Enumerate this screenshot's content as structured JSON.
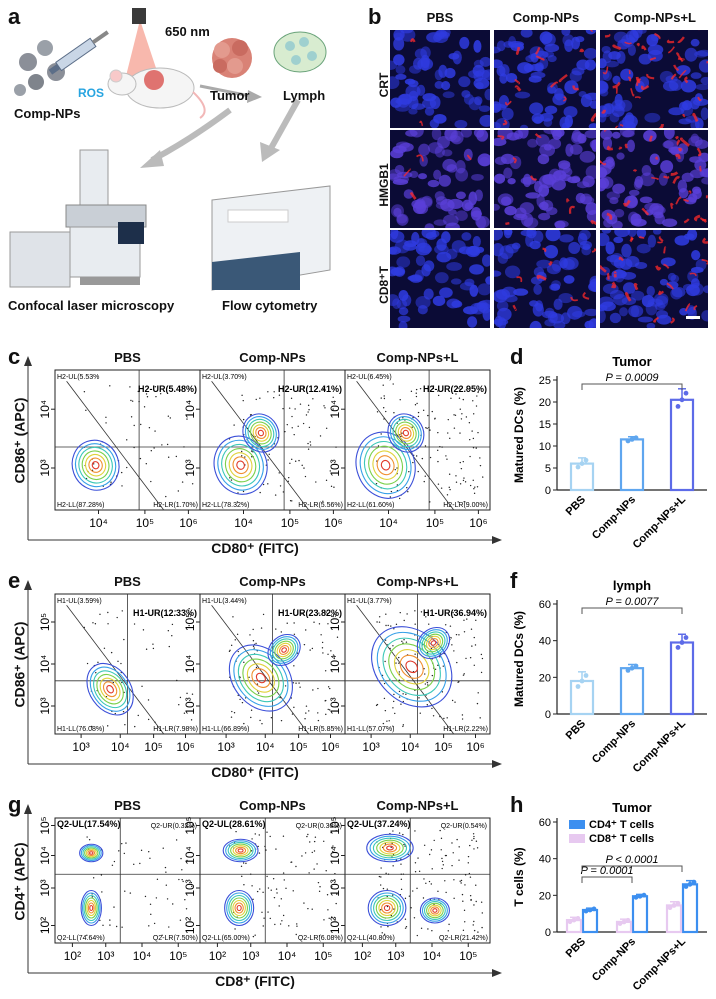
{
  "panel_labels": {
    "a": "a",
    "b": "b",
    "c": "c",
    "d": "d",
    "e": "e",
    "f": "f",
    "g": "g",
    "h": "h"
  },
  "panel_a": {
    "wavelength": "650 nm",
    "ros": "ROS",
    "comp_nps": "Comp-NPs",
    "tumor": "Tumor",
    "lymph": "Lymph",
    "confocal": "Confocal laser microscopy",
    "flow": "Flow cytometry"
  },
  "panel_b": {
    "columns": [
      "PBS",
      "Comp-NPs",
      "Comp-NPs+L"
    ],
    "rows": [
      "CRT",
      "HMGB1",
      "CD8⁺T"
    ]
  },
  "flow_c": {
    "titles": [
      "PBS",
      "Comp-NPs",
      "Comp-NPs+L"
    ],
    "ylabel": "CD86⁺ (APC)",
    "xlabel": "CD80⁺ (FITC)",
    "xticks": [
      "10⁴",
      "10⁵",
      "10⁶"
    ],
    "yticks": [
      "10³",
      "10⁴"
    ],
    "plots": [
      {
        "ul": "H2-UL(5.53%",
        "ur": "H2-UR(5.48%)",
        "ll": "H2-LL(87.28%)",
        "lr": "H2-LR(1.70%)"
      },
      {
        "ul": "H2-UL(3.70%)",
        "ur": "H2-UR(12.41%)",
        "ll": "H2-LL(78.32%)",
        "lr": "H2-LR(5.56%)"
      },
      {
        "ul": "H2-UL(6.45%)",
        "ur": "H2-UR(22.95%)",
        "ll": "H2-LL(61.60%)",
        "lr": "H2-LR(9.00%)"
      }
    ]
  },
  "flow_e": {
    "titles": [
      "PBS",
      "Comp-NPs",
      "Comp-NPs+L"
    ],
    "ylabel": "CD86⁺ (APC)",
    "xlabel": "CD80⁺ (FITC)",
    "xticks": [
      "10³",
      "10⁴",
      "10⁵",
      "10⁶"
    ],
    "yticks": [
      "10³",
      "10⁴",
      "10⁵"
    ],
    "plots": [
      {
        "ul": "H1-UL(3.59%)",
        "ur": "H1-UR(12.33%)",
        "ll": "H1-LL(76.08%)",
        "lr": "H1-LR(7.98%)"
      },
      {
        "ul": "H1-UL(3.44%)",
        "ur": "H1-UR(23.82%)",
        "ll": "H1-LL(66.89%)",
        "lr": "H1-LR(5.85%)"
      },
      {
        "ul": "H1-UL(3.77%)",
        "ur": "H1-UR(36.94%)",
        "ll": "H1-LL(57.07%)",
        "lr": "H1-LR(2.22%)"
      }
    ]
  },
  "flow_g": {
    "titles": [
      "PBS",
      "Comp-NPs",
      "Comp-NPs+L"
    ],
    "ylabel": "CD4⁺ (APC)",
    "xlabel": "CD8⁺ (FITC)",
    "xticks": [
      "10²",
      "10³",
      "10⁴",
      "10⁵"
    ],
    "yticks": [
      "10²",
      "10³",
      "10⁴",
      "10⁵"
    ],
    "plots": [
      {
        "ul": "Q2-UL(17.54%)",
        "ur": "Q2-UR(0.32%)",
        "ll": "Q2-LL(74.64%)",
        "lr": "Q2-LR(7.50%)"
      },
      {
        "ul": "Q2-UL(28.61%)",
        "ur": "Q2-UR(0.30%)",
        "ll": "Q2-LL(65.00%)",
        "lr": "Q2-LR(6.08%)"
      },
      {
        "ul": "Q2-UL(37.24%)",
        "ur": "Q2-UR(0.54%)",
        "ll": "Q2-LL(40.80%)",
        "lr": "Q2-LR(21.42%)"
      }
    ]
  },
  "chart_data": [
    {
      "type": "bar",
      "title": "Tumor",
      "ylabel": "Matured DCs (%)",
      "categories": [
        "PBS",
        "Comp-NPs",
        "Comp-NPs+L"
      ],
      "values": [
        6,
        11.5,
        20.5
      ],
      "errors": [
        1.3,
        0.6,
        2.5
      ],
      "ylim": [
        0,
        25
      ],
      "yticks": [
        0,
        5,
        10,
        15,
        20,
        25
      ],
      "colors": [
        "#a6d3f2",
        "#5fa6ef",
        "#5d6be8"
      ],
      "annotation": {
        "text": "P = 0.0009",
        "from": 0,
        "to": 2
      }
    },
    {
      "type": "bar",
      "title": "lymph",
      "ylabel": "Matured DCs (%)",
      "categories": [
        "PBS",
        "Comp-NPs",
        "Comp-NPs+L"
      ],
      "values": [
        18,
        25,
        39
      ],
      "errors": [
        5,
        2,
        4.5
      ],
      "ylim": [
        0,
        60
      ],
      "yticks": [
        0,
        20,
        40,
        60
      ],
      "colors": [
        "#a6d3f2",
        "#5fa6ef",
        "#5d6be8"
      ],
      "annotation": {
        "text": "P = 0.0077",
        "from": 0,
        "to": 2
      }
    },
    {
      "type": "bar",
      "title": "Tumor",
      "ylabel": "T cells (%)",
      "categories": [
        "PBS",
        "Comp-NPs",
        "Comp-NPs+L"
      ],
      "series": [
        {
          "name": "CD4⁺ T cells",
          "values": [
            12,
            19.5,
            26
          ],
          "errors": [
            1,
            1,
            2
          ],
          "color": "#3c8ff0"
        },
        {
          "name": "CD8⁺ T cells",
          "values": [
            6.5,
            5.5,
            14.5
          ],
          "errors": [
            1.5,
            1.5,
            2
          ],
          "color": "#e7c9f0"
        }
      ],
      "ylim": [
        0,
        60
      ],
      "yticks": [
        0,
        20,
        40,
        60
      ],
      "annotations": [
        {
          "text": "P = 0.0001",
          "from": 0,
          "to": 1
        },
        {
          "text": "P < 0.0001",
          "from": 0,
          "to": 2
        }
      ]
    }
  ]
}
